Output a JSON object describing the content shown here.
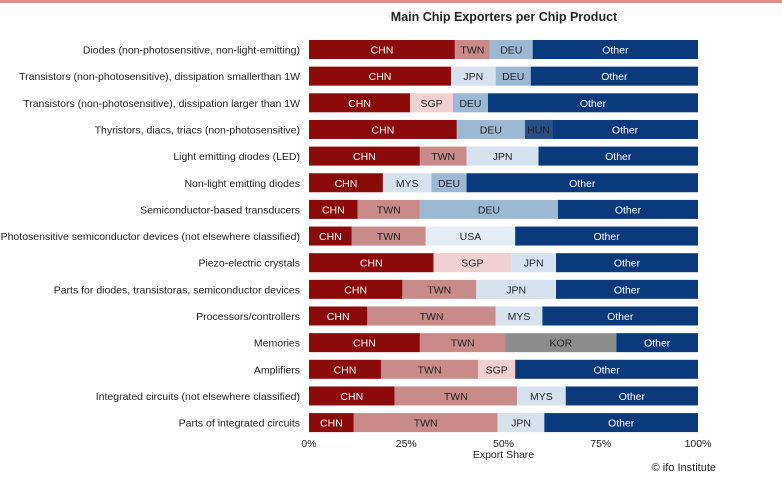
{
  "chart_data": {
    "type": "bar",
    "orientation": "horizontal",
    "stacked": true,
    "title": "Main Chip Exporters per Chip Product",
    "xlabel": "Export Share",
    "xlim": [
      0,
      100
    ],
    "xticks": [
      "0%",
      "25%",
      "50%",
      "75%",
      "100%"
    ],
    "credit": "© ifo Institute",
    "colors": {
      "CHN": "#8b0a0a",
      "TWN": "#c98a8a",
      "SGP": "#f0d0d0",
      "DEU": "#9db8d2",
      "JPN": "#d6e2ee",
      "MYS": "#d6e2ee",
      "USA": "#e4ecf4",
      "HUN": "#274e87",
      "KOR": "#8c8c8c",
      "Other": "#0b3a7c"
    },
    "label_colors": {
      "CHN": "#ffffff",
      "TWN": "#222222",
      "SGP": "#222222",
      "DEU": "#222222",
      "JPN": "#222222",
      "MYS": "#222222",
      "USA": "#222222",
      "HUN": "#222222",
      "KOR": "#222222",
      "Other": "#ffffff"
    },
    "categories": [
      "Diodes (non-photosensitive, non-light-emitting)",
      "Transistors (non-photosensitive), dissipation smallerthan 1W",
      "Transistors (non-photosensitive), dissipation larger than 1W",
      "Thyristors, diacs, triacs (non-photosensitive)",
      "Light emitting diodes (LED)",
      "Non-light emitting diodes",
      "Semiconductor-based transducers",
      "Photosensitive semiconductor devices (not elsewhere classified)",
      "Piezo-electric crystals",
      "Parts for diodes, transistoras, semiconductor devices",
      "Processors/controllers",
      "Memories",
      "Amplifiers",
      "Integrated circuits  (not elsewhere classified)",
      "Parts of integrated circuits"
    ],
    "bars": [
      [
        {
          "c": "CHN",
          "v": 37.5
        },
        {
          "c": "TWN",
          "v": 9
        },
        {
          "c": "DEU",
          "v": 11
        },
        {
          "c": "Other",
          "v": 42.5
        }
      ],
      [
        {
          "c": "CHN",
          "v": 36.5
        },
        {
          "c": "JPN",
          "v": 11.5
        },
        {
          "c": "DEU",
          "v": 9
        },
        {
          "c": "Other",
          "v": 43
        }
      ],
      [
        {
          "c": "CHN",
          "v": 26
        },
        {
          "c": "SGP",
          "v": 11
        },
        {
          "c": "DEU",
          "v": 9
        },
        {
          "c": "Other",
          "v": 54
        }
      ],
      [
        {
          "c": "CHN",
          "v": 38
        },
        {
          "c": "DEU",
          "v": 17.5
        },
        {
          "c": "HUN",
          "v": 7
        },
        {
          "c": "Other",
          "v": 37.5
        }
      ],
      [
        {
          "c": "CHN",
          "v": 28.5
        },
        {
          "c": "TWN",
          "v": 12
        },
        {
          "c": "JPN",
          "v": 18.5
        },
        {
          "c": "Other",
          "v": 41
        }
      ],
      [
        {
          "c": "CHN",
          "v": 19
        },
        {
          "c": "MYS",
          "v": 12.5
        },
        {
          "c": "DEU",
          "v": 9
        },
        {
          "c": "Other",
          "v": 59.5
        }
      ],
      [
        {
          "c": "CHN",
          "v": 12.5
        },
        {
          "c": "TWN",
          "v": 16
        },
        {
          "c": "DEU",
          "v": 35.5
        },
        {
          "c": "Other",
          "v": 36
        }
      ],
      [
        {
          "c": "CHN",
          "v": 11
        },
        {
          "c": "TWN",
          "v": 19
        },
        {
          "c": "USA",
          "v": 23
        },
        {
          "c": "Other",
          "v": 47
        }
      ],
      [
        {
          "c": "CHN",
          "v": 32
        },
        {
          "c": "SGP",
          "v": 20
        },
        {
          "c": "JPN",
          "v": 11.5
        },
        {
          "c": "Other",
          "v": 36.5
        }
      ],
      [
        {
          "c": "CHN",
          "v": 24
        },
        {
          "c": "TWN",
          "v": 19
        },
        {
          "c": "JPN",
          "v": 20.5
        },
        {
          "c": "Other",
          "v": 36.5
        }
      ],
      [
        {
          "c": "CHN",
          "v": 15
        },
        {
          "c": "TWN",
          "v": 33
        },
        {
          "c": "MYS",
          "v": 12
        },
        {
          "c": "Other",
          "v": 40
        }
      ],
      [
        {
          "c": "CHN",
          "v": 28.5
        },
        {
          "c": "TWN",
          "v": 22
        },
        {
          "c": "KOR",
          "v": 28.5
        },
        {
          "c": "Other",
          "v": 21
        }
      ],
      [
        {
          "c": "CHN",
          "v": 18.5
        },
        {
          "c": "TWN",
          "v": 25
        },
        {
          "c": "SGP",
          "v": 9.5
        },
        {
          "c": "Other",
          "v": 47
        }
      ],
      [
        {
          "c": "CHN",
          "v": 22
        },
        {
          "c": "TWN",
          "v": 31.5
        },
        {
          "c": "MYS",
          "v": 12.5
        },
        {
          "c": "Other",
          "v": 34
        }
      ],
      [
        {
          "c": "CHN",
          "v": 11.5
        },
        {
          "c": "TWN",
          "v": 37
        },
        {
          "c": "JPN",
          "v": 12
        },
        {
          "c": "Other",
          "v": 39.5
        }
      ]
    ]
  }
}
